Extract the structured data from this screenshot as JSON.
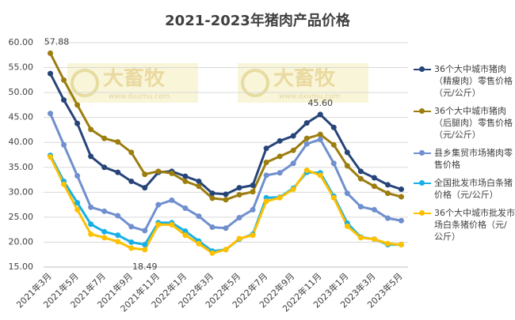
{
  "chart_data": {
    "type": "line",
    "title": "2021-2023年猪肉产品价格",
    "watermark": {
      "text": "大畜牧",
      "url": "www.dxumu.com"
    },
    "categories": [
      "2021年3月",
      null,
      "2021年5月",
      null,
      "2021年7月",
      null,
      "2021年9月",
      null,
      "2021年11月",
      null,
      "2022年1月",
      null,
      "2022年3月",
      null,
      "2022年5月",
      null,
      "2022年7月",
      null,
      "2022年9月",
      null,
      "2022年11月",
      null,
      "2023年1月",
      null,
      "2023年3月",
      null,
      "2023年5月"
    ],
    "ylim": [
      15,
      60
    ],
    "yticks": [
      {
        "value": 15,
        "label": "15.00"
      },
      {
        "value": 20,
        "label": "20.00"
      },
      {
        "value": 25,
        "label": "25.00"
      },
      {
        "value": 30,
        "label": "30.00"
      },
      {
        "value": 35,
        "label": "35.00"
      },
      {
        "value": 40,
        "label": "40.00"
      },
      {
        "value": 45,
        "label": "45.00"
      },
      {
        "value": 50,
        "label": "50.00"
      },
      {
        "value": 55,
        "label": "55.00"
      },
      {
        "value": 60,
        "label": "60.00"
      }
    ],
    "grid": true,
    "legend": "right",
    "series": [
      {
        "name": "36个大中城市猪肉（精瘦肉）零售价格（元/公斤）",
        "color": "#264478",
        "values": [
          53.8,
          48.5,
          43.8,
          37.2,
          35.0,
          34.0,
          32.2,
          30.9,
          34.0,
          34.2,
          33.2,
          32.2,
          29.8,
          29.6,
          30.9,
          31.4,
          38.8,
          40.3,
          41.3,
          43.9,
          45.6,
          43.0,
          38.0,
          34.2,
          32.9,
          31.5,
          30.6
        ],
        "value_labels": [
          null,
          null,
          null,
          null,
          null,
          null,
          null,
          null,
          null,
          null,
          null,
          null,
          null,
          null,
          null,
          null,
          null,
          null,
          null,
          null,
          "45.60",
          null,
          null,
          null,
          null,
          null,
          null
        ]
      },
      {
        "name": "36个大中城市猪肉（后腿肉）零售价格（元/公斤）",
        "color": "#9c7d0e",
        "values": [
          57.88,
          52.5,
          47.5,
          42.6,
          40.8,
          40.1,
          38.0,
          33.6,
          34.2,
          33.8,
          32.2,
          31.2,
          28.8,
          28.5,
          29.5,
          30.1,
          36.0,
          37.2,
          38.4,
          40.8,
          41.6,
          39.5,
          35.3,
          32.7,
          31.2,
          29.8,
          29.1
        ],
        "value_labels": [
          "57.88",
          null,
          null,
          null,
          null,
          null,
          null,
          null,
          null,
          null,
          null,
          null,
          null,
          null,
          null,
          null,
          null,
          null,
          null,
          null,
          null,
          null,
          null,
          null,
          null,
          null,
          null
        ]
      },
      {
        "name": "县乡集贸市场猪肉零售价格",
        "color": "#6f8fce",
        "values": [
          45.8,
          39.5,
          33.3,
          27.0,
          26.2,
          25.3,
          23.1,
          22.3,
          27.5,
          28.4,
          26.8,
          25.2,
          23.0,
          22.8,
          24.9,
          26.5,
          33.4,
          33.9,
          35.8,
          39.7,
          40.6,
          35.8,
          29.8,
          27.1,
          26.5,
          24.8,
          24.3
        ]
      },
      {
        "name": "全国批发市场白条猪价格（元/公斤）",
        "color": "#17b0e6",
        "values": [
          37.4,
          32.2,
          27.9,
          23.6,
          22.1,
          21.4,
          20.0,
          19.5,
          23.9,
          23.9,
          22.2,
          20.2,
          18.2,
          18.5,
          20.6,
          21.6,
          28.9,
          29.0,
          30.8,
          34.0,
          33.9,
          29.2,
          23.8,
          21.0,
          20.6,
          19.5,
          19.5
        ]
      },
      {
        "name": "36个大中城市批发市场白条猪价格（元/公斤）",
        "color": "#ffc000",
        "values": [
          37.1,
          31.6,
          26.5,
          21.6,
          20.9,
          20.1,
          18.8,
          18.49,
          23.5,
          23.5,
          21.4,
          19.7,
          17.8,
          18.5,
          20.7,
          21.4,
          28.2,
          28.9,
          30.6,
          34.4,
          33.4,
          28.9,
          23.2,
          20.9,
          20.6,
          19.7,
          19.5
        ],
        "value_labels": [
          null,
          null,
          null,
          null,
          null,
          null,
          null,
          "18.49",
          null,
          null,
          null,
          null,
          null,
          null,
          null,
          null,
          null,
          null,
          null,
          null,
          null,
          null,
          null,
          null,
          null,
          null,
          null
        ]
      }
    ]
  }
}
